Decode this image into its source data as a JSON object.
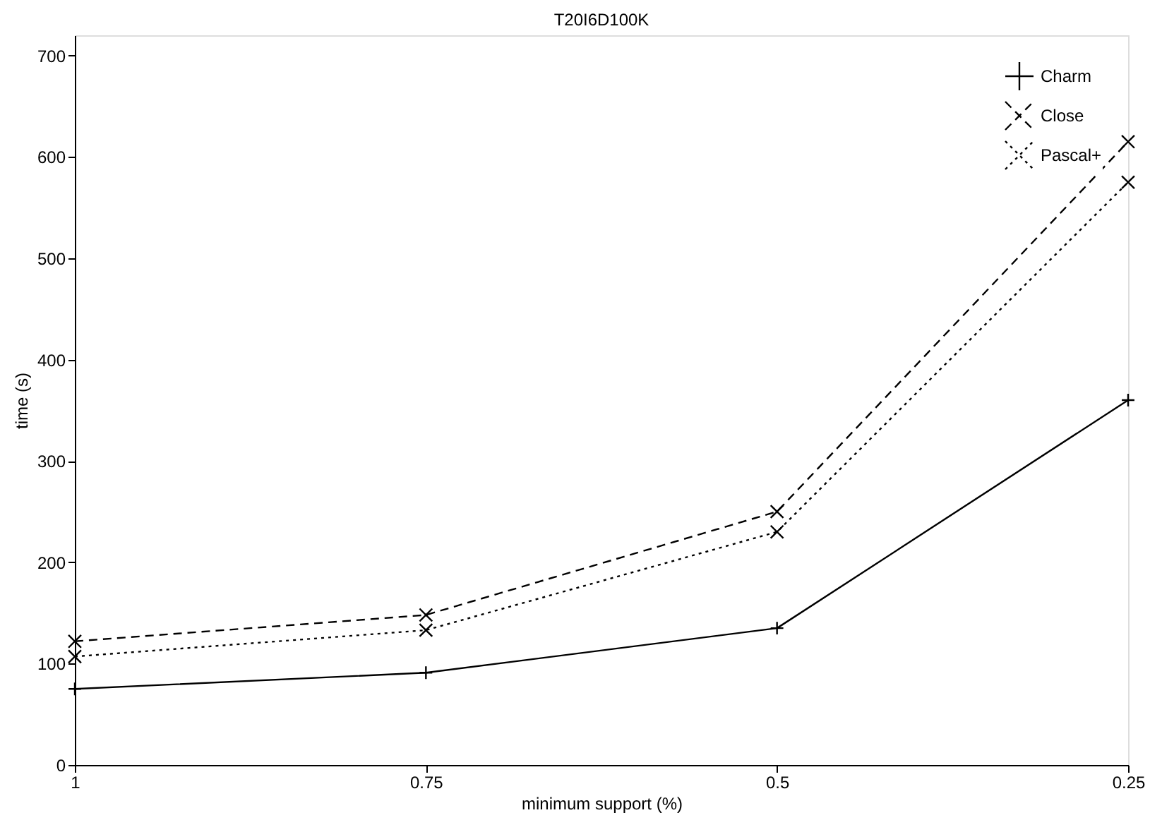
{
  "chart_data": {
    "type": "line",
    "title": "T20I6D100K",
    "xlabel": "minimum support (%)",
    "ylabel": "time (s)",
    "x": [
      1,
      0.75,
      0.5,
      0.25
    ],
    "xlim": [
      1,
      0.25
    ],
    "xticks": [
      1,
      0.75,
      0.5,
      0.25
    ],
    "ylim": [
      0,
      720
    ],
    "yticks": [
      0,
      100,
      200,
      300,
      400,
      500,
      600,
      700
    ],
    "grid": false,
    "legend": "top right",
    "series": [
      {
        "name": "Charm",
        "color": "#000000",
        "values": [
          75,
          91,
          135,
          360
        ],
        "marker": "plus",
        "line_style": "solid"
      },
      {
        "name": "Close",
        "color": "#000000",
        "values": [
          122,
          148,
          250,
          615
        ],
        "marker": "cross",
        "line_style": "dashed"
      },
      {
        "name": "Pascal+",
        "color": "#000000",
        "values": [
          107,
          133,
          230,
          575
        ],
        "marker": "cross",
        "line_style": "dotted"
      }
    ]
  }
}
